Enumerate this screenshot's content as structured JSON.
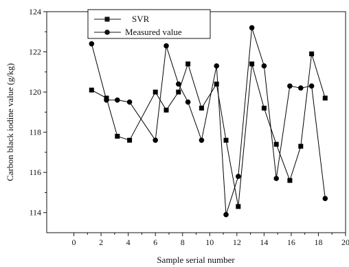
{
  "chart_data": {
    "type": "line",
    "xlabel": "Sample serial number",
    "ylabel": "Carbon black iodine value  (g/kg)",
    "xlim": [
      -2,
      20
    ],
    "ylim": [
      113,
      124
    ],
    "xticks": [
      0,
      2,
      4,
      6,
      8,
      10,
      12,
      14,
      16,
      18,
      20
    ],
    "yticks": [
      114,
      116,
      118,
      120,
      122,
      124
    ],
    "x_tick_labels": [
      "0",
      "2",
      "4",
      "6",
      "8",
      "10",
      "12",
      "14",
      "16",
      "18",
      "20"
    ],
    "y_tick_labels": [
      "114",
      "116",
      "118",
      "120",
      "122",
      "124"
    ],
    "grid": false,
    "legend_position": "top-left",
    "series": [
      {
        "name": "SVR",
        "marker": "square",
        "color": "#000000",
        "points": [
          [
            1.3,
            120.1
          ],
          [
            2.4,
            119.7
          ],
          [
            3.2,
            117.8
          ],
          [
            4.1,
            117.6
          ],
          [
            6.0,
            120.0
          ],
          [
            6.8,
            119.1
          ],
          [
            7.7,
            120.0
          ],
          [
            8.4,
            121.4
          ],
          [
            9.4,
            119.2
          ],
          [
            10.5,
            120.4
          ],
          [
            11.2,
            117.6
          ],
          [
            12.1,
            114.3
          ],
          [
            13.1,
            121.4
          ],
          [
            14.0,
            119.2
          ],
          [
            14.9,
            117.4
          ],
          [
            15.9,
            115.6
          ],
          [
            16.7,
            117.3
          ],
          [
            17.5,
            121.9
          ],
          [
            18.5,
            119.7
          ]
        ]
      },
      {
        "name": "Measured value",
        "marker": "circle",
        "color": "#000000",
        "points": [
          [
            1.3,
            122.4
          ],
          [
            2.4,
            119.6
          ],
          [
            3.2,
            119.6
          ],
          [
            4.1,
            119.5
          ],
          [
            6.0,
            117.6
          ],
          [
            6.8,
            122.3
          ],
          [
            7.7,
            120.4
          ],
          [
            8.4,
            119.5
          ],
          [
            9.4,
            117.6
          ],
          [
            10.5,
            121.3
          ],
          [
            11.2,
            113.9
          ],
          [
            12.1,
            115.8
          ],
          [
            13.1,
            123.2
          ],
          [
            14.0,
            121.3
          ],
          [
            14.9,
            115.7
          ],
          [
            15.9,
            120.3
          ],
          [
            16.7,
            120.2
          ],
          [
            17.5,
            120.3
          ],
          [
            18.5,
            114.7
          ]
        ]
      }
    ]
  }
}
